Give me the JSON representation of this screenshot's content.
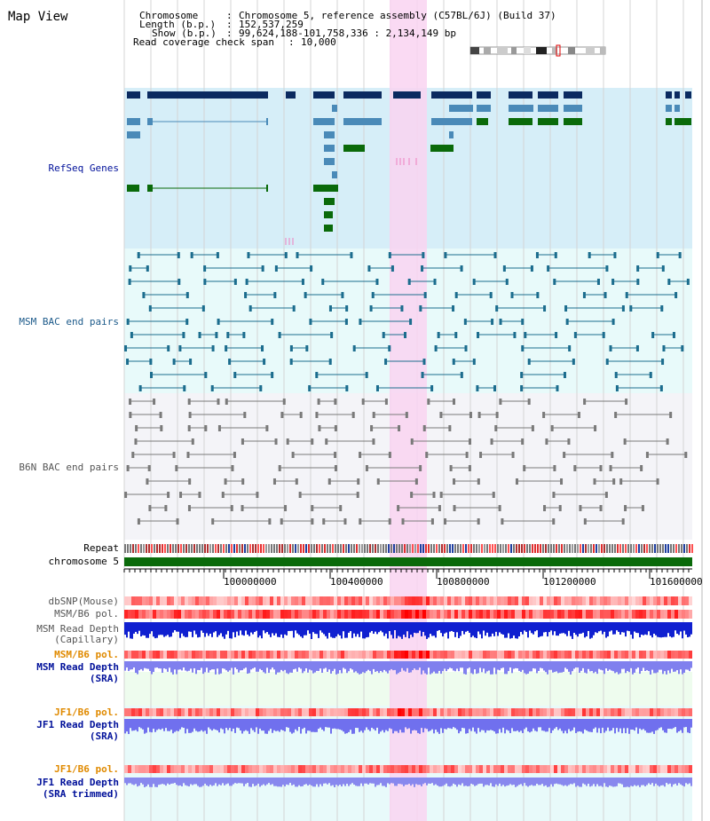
{
  "title": "Map View",
  "info": {
    "chromosome_label": "Chromosome",
    "chromosome_value": "Chromosome 5, reference assembly (C57BL/6J) (Build 37)",
    "length_label": "Length (b.p.)",
    "length_value": "152,537,259",
    "show_label": "Show (b.p.)",
    "show_value": "99,624,188-101,758,336 : 2,134,149 bp",
    "span_label": "Read coverage check span",
    "span_value": "10,000"
  },
  "tracks": {
    "refseq": "RefSeq Genes",
    "msm_bac": "MSM BAC end pairs",
    "b6n_bac": "B6N BAC end pairs",
    "repeat": "Repeat",
    "chromosome": "chromosome 5",
    "dbsnp": "dbSNP(Mouse)",
    "msm_b6_pol_1": "MSM/B6 pol.",
    "msm_read_depth_cap_1": "MSM Read Depth",
    "msm_read_depth_cap_2": "(Capillary)",
    "msm_b6_pol_2": "MSM/B6 pol.",
    "msm_read_depth_sra_1": "MSM Read Depth",
    "msm_read_depth_sra_2": "(SRA)",
    "jf1_b6_pol_1": "JF1/B6 pol.",
    "jf1_read_depth_1": "JF1 Read Depth",
    "jf1_read_depth_2": "(SRA)",
    "jf1_b6_pol_2": "JF1/B6 pol.",
    "jf1_read_depth_trim_1": "JF1 Read Depth",
    "jf1_read_depth_trim_2": "(SRA trimmed)"
  },
  "axis": {
    "ticks": [
      "100000000",
      "100400000",
      "100800000",
      "101200000",
      "101600000"
    ]
  },
  "colors": {
    "refseq_bg": "#d6eef8",
    "msm_bg": "#e8fafa",
    "b6n_bg": "#f4f4f8",
    "highlight": "#f9d4f1",
    "gene_navy": "#0b2a60",
    "gene_light": "#4a8ab8",
    "gene_green": "#0a6a0a",
    "msm_pair": "#1c6d8e",
    "b6n_pair": "#7a7a7a",
    "chromosome_bar": "#0a6a0a",
    "label_blue": "#00109a",
    "label_orange": "#e08a00"
  }
}
